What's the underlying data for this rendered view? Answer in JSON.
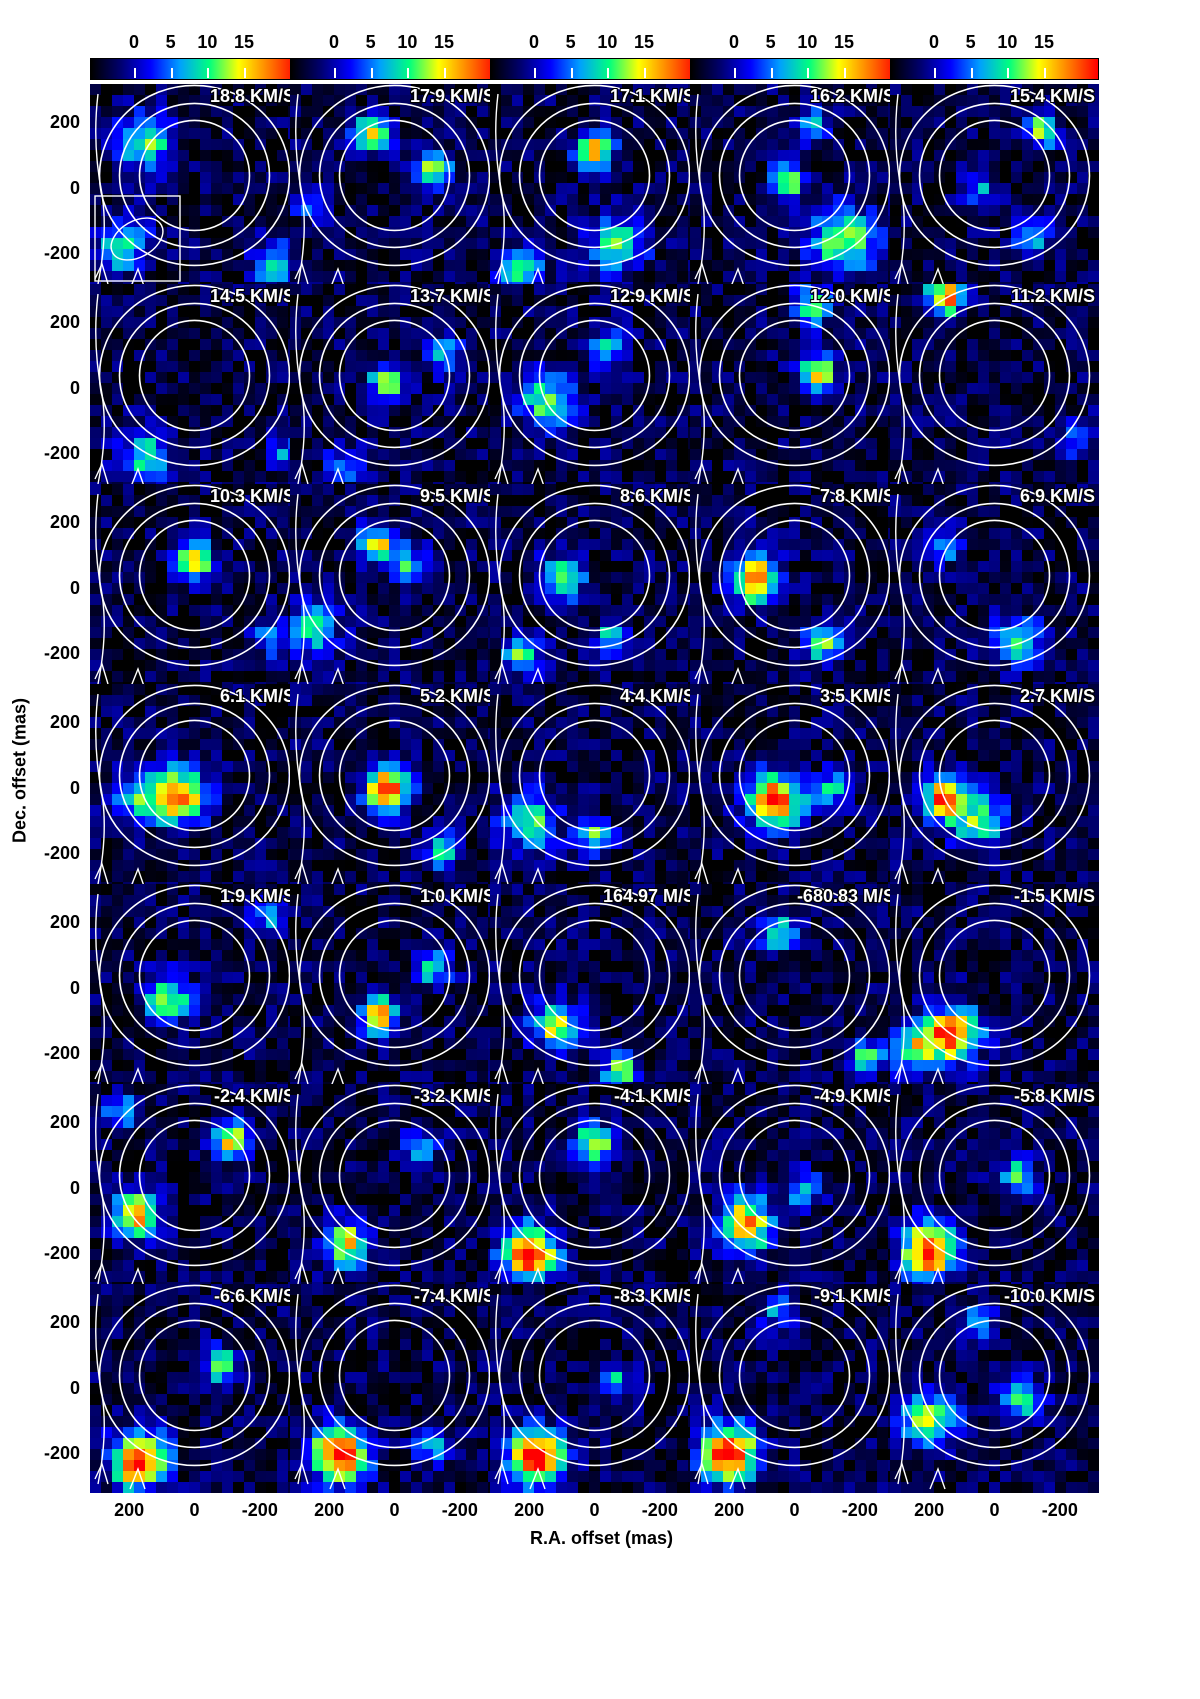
{
  "figure": {
    "colorbar_ticks": [
      "0",
      "5",
      "10",
      "15"
    ],
    "colorbar_range": [
      0,
      18
    ],
    "colormap": [
      "#000000",
      "#000070",
      "#0000ff",
      "#00a0ff",
      "#00ff80",
      "#ffff00",
      "#ff8000",
      "#ff0000"
    ],
    "y_tick_labels": [
      "200",
      "0",
      "-200"
    ],
    "x_tick_labels": [
      "200",
      "0",
      "-200"
    ],
    "ylabel": "Dec. offset (mas)",
    "xlabel": "R.A. offset (mas)",
    "contour_color": "#ffffff"
  },
  "chart_data": {
    "type": "heatmap",
    "description_units": {
      "x": "R.A. offset (mas)",
      "y": "Dec. offset (mas)"
    },
    "xlim": [
      320,
      -320
    ],
    "ylim": [
      -320,
      320
    ],
    "channels": [
      {
        "velocity": "18.8 KM/S",
        "blobs": [
          [
            150,
            140,
            60,
            10
          ],
          [
            220,
            -180,
            60,
            8
          ],
          [
            -250,
            -230,
            50,
            8
          ]
        ]
      },
      {
        "velocity": "17.9 KM/S",
        "blobs": [
          [
            70,
            170,
            40,
            12
          ],
          [
            -120,
            60,
            40,
            12
          ],
          [
            250,
            -50,
            40,
            6
          ]
        ]
      },
      {
        "velocity": "17.1 KM/S",
        "blobs": [
          [
            0,
            120,
            40,
            13
          ],
          [
            -70,
            -170,
            60,
            10
          ],
          [
            220,
            -260,
            50,
            8
          ]
        ]
      },
      {
        "velocity": "16.2 KM/S",
        "blobs": [
          [
            20,
            20,
            40,
            10
          ],
          [
            -150,
            -160,
            70,
            11
          ],
          [
            -50,
            190,
            40,
            7
          ]
        ]
      },
      {
        "velocity": "15.4 KM/S",
        "blobs": [
          [
            -140,
            180,
            40,
            10
          ],
          [
            -120,
            -150,
            40,
            8
          ],
          [
            50,
            0,
            40,
            6
          ]
        ]
      },
      {
        "velocity": "14.5 KM/S",
        "blobs": [
          [
            150,
            -210,
            60,
            8
          ],
          [
            -280,
            -200,
            40,
            6
          ]
        ]
      },
      {
        "velocity": "13.7 KM/S",
        "blobs": [
          [
            20,
            20,
            40,
            11
          ],
          [
            -150,
            100,
            40,
            8
          ],
          [
            150,
            -230,
            40,
            6
          ]
        ]
      },
      {
        "velocity": "12.9 KM/S",
        "blobs": [
          [
            140,
            -40,
            60,
            10
          ],
          [
            -40,
            120,
            40,
            8
          ]
        ]
      },
      {
        "velocity": "12.0 KM/S",
        "blobs": [
          [
            -70,
            50,
            40,
            13
          ],
          [
            -50,
            250,
            40,
            10
          ]
        ]
      },
      {
        "velocity": "11.2 KM/S",
        "blobs": [
          [
            150,
            280,
            40,
            15
          ],
          [
            -250,
            -150,
            40,
            7
          ]
        ]
      },
      {
        "velocity": "10.3 KM/S",
        "blobs": [
          [
            0,
            90,
            40,
            14
          ],
          [
            -230,
            -150,
            40,
            7
          ]
        ]
      },
      {
        "velocity": "9.5 KM/S",
        "blobs": [
          [
            50,
            140,
            40,
            11
          ],
          [
            -40,
            80,
            40,
            8
          ],
          [
            250,
            -120,
            60,
            8
          ]
        ]
      },
      {
        "velocity": "8.6 KM/S",
        "blobs": [
          [
            100,
            30,
            50,
            10
          ],
          [
            -50,
            -160,
            40,
            8
          ],
          [
            220,
            -210,
            40,
            10
          ]
        ]
      },
      {
        "velocity": "7.8 KM/S",
        "blobs": [
          [
            120,
            30,
            50,
            17
          ],
          [
            -80,
            -170,
            40,
            11
          ]
        ]
      },
      {
        "velocity": "6.9 KM/S",
        "blobs": [
          [
            -70,
            -160,
            50,
            10
          ],
          [
            150,
            130,
            40,
            7
          ]
        ]
      },
      {
        "velocity": "6.1 KM/S",
        "blobs": [
          [
            50,
            -20,
            60,
            15
          ],
          [
            180,
            -30,
            50,
            8
          ]
        ]
      },
      {
        "velocity": "5.2 KM/S",
        "blobs": [
          [
            20,
            0,
            50,
            16
          ],
          [
            -150,
            -190,
            40,
            8
          ]
        ]
      },
      {
        "velocity": "4.4 KM/S",
        "blobs": [
          [
            200,
            -100,
            60,
            10
          ],
          [
            0,
            -150,
            40,
            9
          ]
        ]
      },
      {
        "velocity": "3.5 KM/S",
        "blobs": [
          [
            60,
            -40,
            60,
            16
          ],
          [
            -120,
            0,
            40,
            8
          ]
        ]
      },
      {
        "velocity": "2.7 KM/S",
        "blobs": [
          [
            150,
            -30,
            50,
            15
          ],
          [
            40,
            -100,
            60,
            9
          ]
        ]
      },
      {
        "velocity": "1.9 KM/S",
        "blobs": [
          [
            80,
            -30,
            50,
            11
          ],
          [
            -220,
            230,
            40,
            7
          ]
        ]
      },
      {
        "velocity": "1.0 KM/S",
        "blobs": [
          [
            50,
            -80,
            40,
            14
          ],
          [
            -120,
            60,
            40,
            8
          ]
        ]
      },
      {
        "velocity": "164.97 M/S",
        "blobs": [
          [
            120,
            -110,
            50,
            12
          ],
          [
            -80,
            -250,
            40,
            10
          ]
        ]
      },
      {
        "velocity": "-680.83 M/S",
        "blobs": [
          [
            50,
            170,
            40,
            9
          ],
          [
            -220,
            -210,
            40,
            9
          ]
        ]
      },
      {
        "velocity": "-1.5 KM/S",
        "blobs": [
          [
            130,
            -140,
            60,
            16
          ],
          [
            250,
            -190,
            50,
            10
          ]
        ]
      },
      {
        "velocity": "-2.4 KM/S",
        "blobs": [
          [
            180,
            -80,
            50,
            14
          ],
          [
            -110,
            150,
            40,
            13
          ],
          [
            220,
            240,
            40,
            8
          ]
        ]
      },
      {
        "velocity": "-3.2 KM/S",
        "blobs": [
          [
            150,
            -170,
            50,
            12
          ],
          [
            -80,
            120,
            40,
            7
          ]
        ]
      },
      {
        "velocity": "-4.1 KM/S",
        "blobs": [
          [
            200,
            -200,
            60,
            17
          ],
          [
            0,
            140,
            40,
            13
          ]
        ]
      },
      {
        "velocity": "-4.9 KM/S",
        "blobs": [
          [
            150,
            -110,
            60,
            14
          ],
          [
            -30,
            0,
            40,
            8
          ]
        ]
      },
      {
        "velocity": "-5.8 KM/S",
        "blobs": [
          [
            200,
            -190,
            60,
            17
          ],
          [
            -70,
            40,
            40,
            9
          ]
        ]
      },
      {
        "velocity": "-6.6 KM/S",
        "blobs": [
          [
            170,
            -220,
            60,
            18
          ],
          [
            -80,
            70,
            40,
            10
          ]
        ]
      },
      {
        "velocity": "-7.4 KM/S",
        "blobs": [
          [
            170,
            -200,
            60,
            18
          ],
          [
            -120,
            -180,
            40,
            7
          ]
        ]
      },
      {
        "velocity": "-8.3 KM/S",
        "blobs": [
          [
            180,
            -210,
            60,
            18
          ],
          [
            -60,
            20,
            40,
            8
          ]
        ]
      },
      {
        "velocity": "-9.1 KM/S",
        "blobs": [
          [
            200,
            -200,
            60,
            18
          ],
          [
            50,
            240,
            40,
            6
          ]
        ]
      },
      {
        "velocity": "-10.0 KM/S",
        "blobs": [
          [
            200,
            -100,
            60,
            11
          ],
          [
            -80,
            -40,
            50,
            8
          ],
          [
            50,
            200,
            40,
            6
          ]
        ]
      }
    ]
  }
}
